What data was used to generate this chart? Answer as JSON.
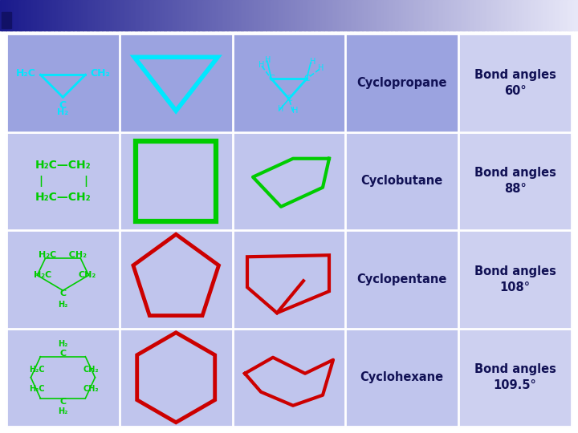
{
  "background_color": "#ffffff",
  "header_gradient_left": "#1a1a8c",
  "header_gradient_right": "#e8e8f8",
  "cell_bg_row0": "#9ba3e0",
  "cell_bg_rows": "#c0c5ed",
  "cell_bg_last_col": "#cdd0f0",
  "grid_color": "#ffffff",
  "row_labels": [
    "Cyclopropane",
    "Cyclobutane",
    "Cyclopentane",
    "Cyclohexane"
  ],
  "bond_angle_labels": [
    "Bond angles\n60°",
    "Bond angles\n88°",
    "Bond angles\n108°",
    "Bond angles\n109.5°"
  ],
  "cyan_color": "#00e8ff",
  "green_color": "#00cc00",
  "red_color": "#cc0000",
  "label_color": "#111155"
}
